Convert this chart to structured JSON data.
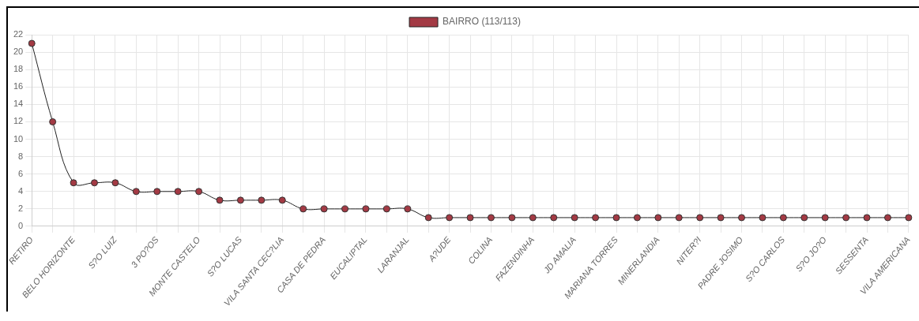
{
  "chart_data": {
    "type": "line",
    "categories": [
      "RETIRO",
      null,
      "BELO HORIZONTE",
      null,
      "S?O LUIZ",
      null,
      "3 PO?OS",
      null,
      "MONTE CASTELO",
      null,
      "S?O LUCAS",
      null,
      "VILA SANTA CEC?LIA",
      null,
      "CASA DE PEDRA",
      null,
      "EUCALIPTAL",
      null,
      "LARANJAL",
      null,
      "A?UDE",
      null,
      "COLINA",
      null,
      "FAZENDINHA",
      null,
      "JD AMALIA",
      null,
      "MARIANA TORRES",
      null,
      "MINERLANDIA",
      null,
      "NITER?I",
      null,
      "PADRE JOSIMO",
      null,
      "S?O CARLOS",
      null,
      "S?O JO?O",
      null,
      "SESSENTA",
      null,
      "VILA AMERICANA"
    ],
    "series": [
      {
        "name": "BAIRRO (113/113)",
        "color": "#a33a44",
        "values": [
          21,
          12,
          5,
          5,
          5,
          4,
          4,
          4,
          4,
          3,
          3,
          3,
          3,
          2,
          2,
          2,
          2,
          2,
          2,
          1,
          1,
          1,
          1,
          1,
          1,
          1,
          1,
          1,
          1,
          1,
          1,
          1,
          1,
          1,
          1,
          1,
          1,
          1,
          1,
          1,
          1,
          1,
          1
        ]
      }
    ],
    "ylim": [
      0,
      22
    ],
    "yticks": [
      0,
      2,
      4,
      6,
      8,
      10,
      12,
      14,
      16,
      18,
      20,
      22
    ],
    "grid": true,
    "legend": "top",
    "marker": "circle"
  }
}
